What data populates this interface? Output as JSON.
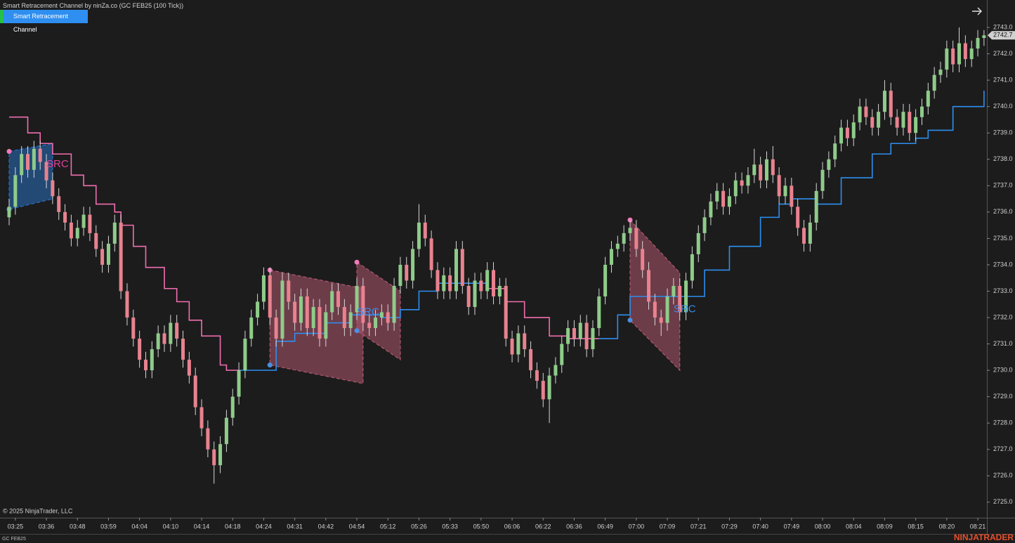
{
  "header": {
    "title": "Smart Retracement Channel by ninZa.co (GC FEB25 (100 Tick))",
    "button": "Smart Retracement Channel"
  },
  "footer": {
    "copyright": "© 2025 NinjaTrader, LLC",
    "instrument": "GC FEB25",
    "brand": "NINJATRADER"
  },
  "chart_data": {
    "type": "candlestick",
    "up_color": "#8fcb8a",
    "down_color": "#e8828f",
    "wick_color": "#d8d8d8",
    "ylim": [
      2724.41,
      2744.04
    ],
    "yticks": [
      {
        "value": 2725,
        "label": "2725.0"
      },
      {
        "value": 2726,
        "label": "2726.0"
      },
      {
        "value": 2727,
        "label": "2727.0"
      },
      {
        "value": 2728,
        "label": "2728.0"
      },
      {
        "value": 2729,
        "label": "2729.0"
      },
      {
        "value": 2730,
        "label": "2730.0"
      },
      {
        "value": 2731,
        "label": "2731.0"
      },
      {
        "value": 2732,
        "label": "2732.0"
      },
      {
        "value": 2733,
        "label": "2733.0"
      },
      {
        "value": 2734,
        "label": "2734.0"
      },
      {
        "value": 2735,
        "label": "2735.0"
      },
      {
        "value": 2736,
        "label": "2736.0"
      },
      {
        "value": 2737,
        "label": "2737.0"
      },
      {
        "value": 2738,
        "label": "2738.0"
      },
      {
        "value": 2739,
        "label": "2739.0"
      },
      {
        "value": 2740,
        "label": "2740.0"
      },
      {
        "value": 2741,
        "label": "2741.0"
      },
      {
        "value": 2742,
        "label": "2742.0"
      },
      {
        "value": 2743,
        "label": "2743.0"
      }
    ],
    "xticks": [
      {
        "value": 1,
        "label": "03:25"
      },
      {
        "value": 6,
        "label": "03:36"
      },
      {
        "value": 11,
        "label": "03:48"
      },
      {
        "value": 16,
        "label": "03:59"
      },
      {
        "value": 21,
        "label": "04:04"
      },
      {
        "value": 26,
        "label": "04:10"
      },
      {
        "value": 31,
        "label": "04:14"
      },
      {
        "value": 36,
        "label": "04:18"
      },
      {
        "value": 41,
        "label": "04:24"
      },
      {
        "value": 46,
        "label": "04:31"
      },
      {
        "value": 51,
        "label": "04:42"
      },
      {
        "value": 56,
        "label": "04:54"
      },
      {
        "value": 61,
        "label": "05:12"
      },
      {
        "value": 66,
        "label": "05:26"
      },
      {
        "value": 71,
        "label": "05:33"
      },
      {
        "value": 76,
        "label": "05:50"
      },
      {
        "value": 81,
        "label": "06:06"
      },
      {
        "value": 86,
        "label": "06:22"
      },
      {
        "value": 91,
        "label": "06:36"
      },
      {
        "value": 96,
        "label": "06:49"
      },
      {
        "value": 101,
        "label": "07:00"
      },
      {
        "value": 106,
        "label": "07:09"
      },
      {
        "value": 111,
        "label": "07:21"
      },
      {
        "value": 116,
        "label": "07:29"
      },
      {
        "value": 121,
        "label": "07:40"
      },
      {
        "value": 126,
        "label": "07:49"
      },
      {
        "value": 131,
        "label": "08:00"
      },
      {
        "value": 136,
        "label": "08:04"
      },
      {
        "value": 141,
        "label": "08:09"
      },
      {
        "value": 146,
        "label": "08:15"
      },
      {
        "value": 151,
        "label": "08:20"
      },
      {
        "value": 156,
        "label": "08:21"
      }
    ],
    "last_price": 2742.7,
    "candles": [
      [
        2735.8,
        2736.5,
        2735.5,
        2736.2
      ],
      [
        2736.2,
        2737.7,
        2735.9,
        2737.4
      ],
      [
        2737.4,
        2738.5,
        2737.1,
        2738.2
      ],
      [
        2738.2,
        2738.5,
        2737.3,
        2737.6
      ],
      [
        2737.6,
        2738.7,
        2737.3,
        2738.4
      ],
      [
        2738.4,
        2738.7,
        2737.6,
        2737.9
      ],
      [
        2737.9,
        2738.2,
        2736.9,
        2737.2
      ],
      [
        2737.2,
        2737.5,
        2736.3,
        2736.6
      ],
      [
        2736.6,
        2736.9,
        2735.7,
        2736.0
      ],
      [
        2736.0,
        2736.3,
        2735.3,
        2735.6
      ],
      [
        2735.6,
        2735.9,
        2734.7,
        2735.0
      ],
      [
        2735.0,
        2735.7,
        2734.7,
        2735.4
      ],
      [
        2735.4,
        2736.2,
        2735.1,
        2735.9
      ],
      [
        2735.9,
        2736.2,
        2734.9,
        2735.2
      ],
      [
        2735.2,
        2735.5,
        2734.3,
        2734.6
      ],
      [
        2734.6,
        2734.9,
        2733.7,
        2734.0
      ],
      [
        2734.0,
        2735.1,
        2733.7,
        2734.8
      ],
      [
        2734.8,
        2735.9,
        2734.5,
        2735.6
      ],
      [
        2735.6,
        2735.9,
        2732.7,
        2733.0
      ],
      [
        2733.0,
        2733.3,
        2731.7,
        2732.0
      ],
      [
        2732.0,
        2732.3,
        2730.9,
        2731.2
      ],
      [
        2731.2,
        2731.5,
        2730.1,
        2730.4
      ],
      [
        2730.4,
        2730.7,
        2729.7,
        2730.0
      ],
      [
        2730.0,
        2731.1,
        2729.7,
        2730.8
      ],
      [
        2730.8,
        2731.7,
        2730.5,
        2731.4
      ],
      [
        2731.4,
        2731.7,
        2730.7,
        2731.0
      ],
      [
        2731.0,
        2732.1,
        2730.7,
        2731.8
      ],
      [
        2731.8,
        2732.1,
        2730.9,
        2731.2
      ],
      [
        2731.2,
        2731.5,
        2730.1,
        2730.4
      ],
      [
        2730.4,
        2730.7,
        2729.5,
        2729.8
      ],
      [
        2729.8,
        2730.1,
        2728.3,
        2728.6
      ],
      [
        2728.6,
        2728.9,
        2727.5,
        2727.8
      ],
      [
        2727.8,
        2728.1,
        2726.7,
        2727.0
      ],
      [
        2727.0,
        2727.3,
        2725.7,
        2726.4
      ],
      [
        2726.4,
        2727.5,
        2726.1,
        2727.2
      ],
      [
        2727.2,
        2728.5,
        2726.9,
        2728.2
      ],
      [
        2728.2,
        2729.3,
        2727.9,
        2729.0
      ],
      [
        2729.0,
        2730.3,
        2728.7,
        2730.0
      ],
      [
        2730.0,
        2731.5,
        2729.7,
        2731.2
      ],
      [
        2731.2,
        2732.3,
        2730.9,
        2732.0
      ],
      [
        2732.0,
        2732.9,
        2731.7,
        2732.6
      ],
      [
        2732.6,
        2733.9,
        2732.3,
        2733.6
      ],
      [
        2733.6,
        2733.9,
        2731.7,
        2732.0
      ],
      [
        2732.0,
        2732.3,
        2730.9,
        2731.2
      ],
      [
        2731.2,
        2733.7,
        2730.9,
        2733.4
      ],
      [
        2733.4,
        2733.7,
        2732.3,
        2732.6
      ],
      [
        2732.6,
        2732.9,
        2731.5,
        2731.8
      ],
      [
        2731.8,
        2733.1,
        2731.5,
        2732.8
      ],
      [
        2732.8,
        2733.1,
        2731.3,
        2731.6
      ],
      [
        2731.6,
        2732.7,
        2731.3,
        2732.4
      ],
      [
        2732.4,
        2732.7,
        2730.9,
        2731.2
      ],
      [
        2731.2,
        2732.5,
        2730.9,
        2732.2
      ],
      [
        2732.2,
        2733.3,
        2731.9,
        2733.0
      ],
      [
        2733.0,
        2733.3,
        2732.1,
        2732.4
      ],
      [
        2732.4,
        2732.7,
        2731.3,
        2731.6
      ],
      [
        2731.6,
        2732.5,
        2731.3,
        2732.2
      ],
      [
        2732.2,
        2733.5,
        2731.9,
        2733.2
      ],
      [
        2733.2,
        2733.5,
        2731.5,
        2731.8
      ],
      [
        2731.8,
        2732.1,
        2731.3,
        2731.6
      ],
      [
        2731.6,
        2732.3,
        2731.3,
        2732.0
      ],
      [
        2732.0,
        2732.5,
        2731.7,
        2732.2
      ],
      [
        2732.2,
        2732.5,
        2731.5,
        2731.8
      ],
      [
        2731.8,
        2733.5,
        2731.5,
        2733.2
      ],
      [
        2733.2,
        2734.3,
        2732.9,
        2734.0
      ],
      [
        2734.0,
        2734.3,
        2733.1,
        2733.4
      ],
      [
        2733.4,
        2734.9,
        2733.1,
        2734.6
      ],
      [
        2734.6,
        2736.3,
        2734.3,
        2735.6
      ],
      [
        2735.6,
        2735.9,
        2734.7,
        2735.0
      ],
      [
        2735.0,
        2735.3,
        2733.5,
        2733.8
      ],
      [
        2733.8,
        2734.1,
        2732.7,
        2733.0
      ],
      [
        2733.0,
        2733.9,
        2732.7,
        2733.6
      ],
      [
        2733.6,
        2733.9,
        2732.7,
        2733.0
      ],
      [
        2733.0,
        2734.9,
        2732.7,
        2734.6
      ],
      [
        2734.6,
        2734.9,
        2732.9,
        2733.2
      ],
      [
        2733.2,
        2733.5,
        2732.1,
        2732.4
      ],
      [
        2732.4,
        2733.7,
        2732.1,
        2733.4
      ],
      [
        2733.4,
        2733.7,
        2732.7,
        2733.0
      ],
      [
        2733.0,
        2734.1,
        2732.7,
        2733.8
      ],
      [
        2733.8,
        2734.1,
        2732.5,
        2732.8
      ],
      [
        2732.8,
        2733.5,
        2732.5,
        2733.2
      ],
      [
        2733.2,
        2733.5,
        2730.9,
        2731.2
      ],
      [
        2731.2,
        2731.5,
        2730.3,
        2730.6
      ],
      [
        2730.6,
        2731.7,
        2730.3,
        2731.4
      ],
      [
        2731.4,
        2731.7,
        2730.5,
        2730.8
      ],
      [
        2730.8,
        2731.1,
        2729.7,
        2730.0
      ],
      [
        2730.0,
        2730.3,
        2729.3,
        2729.6
      ],
      [
        2729.6,
        2729.9,
        2728.6,
        2728.9
      ],
      [
        2728.9,
        2730.1,
        2728.0,
        2729.8
      ],
      [
        2729.8,
        2730.5,
        2729.5,
        2730.2
      ],
      [
        2730.2,
        2731.3,
        2729.9,
        2731.0
      ],
      [
        2731.0,
        2731.9,
        2730.7,
        2731.6
      ],
      [
        2731.6,
        2731.9,
        2730.9,
        2731.2
      ],
      [
        2731.2,
        2732.1,
        2730.9,
        2731.8
      ],
      [
        2731.8,
        2732.1,
        2730.5,
        2730.8
      ],
      [
        2730.8,
        2731.9,
        2730.5,
        2731.6
      ],
      [
        2731.6,
        2733.1,
        2731.3,
        2732.8
      ],
      [
        2732.8,
        2734.3,
        2732.5,
        2734.0
      ],
      [
        2734.0,
        2734.9,
        2733.7,
        2734.6
      ],
      [
        2734.6,
        2735.1,
        2734.3,
        2734.8
      ],
      [
        2734.8,
        2735.5,
        2734.5,
        2735.2
      ],
      [
        2735.2,
        2735.7,
        2734.9,
        2735.4
      ],
      [
        2735.4,
        2735.7,
        2734.3,
        2734.6
      ],
      [
        2734.6,
        2734.9,
        2733.5,
        2733.8
      ],
      [
        2733.8,
        2734.1,
        2732.3,
        2732.6
      ],
      [
        2732.6,
        2732.9,
        2731.7,
        2732.0
      ],
      [
        2732.0,
        2732.3,
        2731.3,
        2731.8
      ],
      [
        2731.8,
        2733.1,
        2731.5,
        2732.8
      ],
      [
        2732.8,
        2733.5,
        2732.5,
        2733.2
      ],
      [
        2733.2,
        2733.5,
        2731.9,
        2732.2
      ],
      [
        2732.2,
        2733.7,
        2731.9,
        2733.4
      ],
      [
        2733.4,
        2734.7,
        2733.1,
        2734.4
      ],
      [
        2734.4,
        2735.5,
        2734.1,
        2735.2
      ],
      [
        2735.2,
        2736.1,
        2734.9,
        2735.8
      ],
      [
        2735.8,
        2736.7,
        2735.5,
        2736.4
      ],
      [
        2736.4,
        2737.1,
        2736.1,
        2736.8
      ],
      [
        2736.8,
        2737.1,
        2735.9,
        2736.2
      ],
      [
        2736.2,
        2736.9,
        2735.9,
        2736.6
      ],
      [
        2736.6,
        2737.5,
        2736.3,
        2737.2
      ],
      [
        2737.2,
        2737.5,
        2736.7,
        2737.0
      ],
      [
        2737.0,
        2737.7,
        2736.7,
        2737.4
      ],
      [
        2737.4,
        2738.4,
        2737.1,
        2737.8
      ],
      [
        2737.8,
        2738.1,
        2736.9,
        2737.2
      ],
      [
        2737.2,
        2738.3,
        2736.9,
        2738.0
      ],
      [
        2738.0,
        2738.5,
        2737.1,
        2737.4
      ],
      [
        2737.4,
        2737.7,
        2736.3,
        2736.6
      ],
      [
        2736.6,
        2737.3,
        2736.3,
        2737.0
      ],
      [
        2737.0,
        2737.3,
        2735.9,
        2736.2
      ],
      [
        2736.2,
        2736.5,
        2735.1,
        2735.4
      ],
      [
        2735.4,
        2735.7,
        2734.5,
        2734.8
      ],
      [
        2734.8,
        2735.9,
        2734.5,
        2735.6
      ],
      [
        2735.6,
        2737.1,
        2735.3,
        2736.8
      ],
      [
        2736.8,
        2737.9,
        2736.5,
        2737.6
      ],
      [
        2737.6,
        2738.3,
        2737.3,
        2738.0
      ],
      [
        2738.0,
        2738.9,
        2737.7,
        2738.6
      ],
      [
        2738.6,
        2739.5,
        2738.3,
        2739.2
      ],
      [
        2739.2,
        2739.5,
        2738.5,
        2738.8
      ],
      [
        2738.8,
        2739.7,
        2738.5,
        2739.4
      ],
      [
        2739.4,
        2740.3,
        2739.1,
        2740.0
      ],
      [
        2740.0,
        2740.3,
        2739.3,
        2739.6
      ],
      [
        2739.6,
        2739.9,
        2738.9,
        2739.2
      ],
      [
        2739.2,
        2740.1,
        2738.9,
        2739.8
      ],
      [
        2739.8,
        2741.0,
        2739.5,
        2740.6
      ],
      [
        2740.6,
        2740.9,
        2739.3,
        2739.6
      ],
      [
        2739.6,
        2739.9,
        2738.9,
        2739.2
      ],
      [
        2739.2,
        2740.1,
        2738.9,
        2739.8
      ],
      [
        2739.8,
        2740.1,
        2738.7,
        2739.0
      ],
      [
        2739.0,
        2739.9,
        2738.7,
        2739.6
      ],
      [
        2739.6,
        2740.3,
        2739.3,
        2740.0
      ],
      [
        2740.0,
        2740.9,
        2739.7,
        2740.6
      ],
      [
        2740.6,
        2741.5,
        2740.3,
        2741.2
      ],
      [
        2741.2,
        2741.7,
        2740.9,
        2741.4
      ],
      [
        2741.4,
        2742.5,
        2741.1,
        2742.2
      ],
      [
        2742.2,
        2742.5,
        2741.3,
        2741.6
      ],
      [
        2741.6,
        2743.0,
        2741.3,
        2742.4
      ],
      [
        2742.4,
        2742.7,
        2741.5,
        2741.8
      ],
      [
        2741.8,
        2742.5,
        2741.5,
        2742.2
      ],
      [
        2742.2,
        2742.9,
        2741.9,
        2742.6
      ],
      [
        2742.6,
        2742.9,
        2742.3,
        2742.7
      ]
    ],
    "series": [
      {
        "color": "#f06eb0",
        "x": [
          0,
          3,
          5,
          7,
          10,
          12,
          14,
          17,
          18,
          20,
          22,
          25,
          27,
          29,
          31,
          34,
          35,
          37,
          38,
          77,
          80,
          83,
          87,
          90,
          95
        ],
        "values": [
          2739.6,
          2739.0,
          2738.6,
          2738.2,
          2737.4,
          2737.0,
          2736.3,
          2736.0,
          2735.5,
          2734.7,
          2733.9,
          2733.1,
          2732.6,
          2731.9,
          2731.3,
          2730.2,
          2730.0,
          2730.0,
          null,
          2733.1,
          2732.6,
          2732.0,
          2731.3,
          2731.2,
          2731.2
        ]
      },
      {
        "color": "#2d8ff0",
        "x": [
          37,
          43,
          46,
          51,
          55,
          60,
          63,
          66,
          69,
          77,
          78,
          95,
          98,
          100,
          109,
          112,
          116,
          121,
          124,
          126,
          130,
          134,
          139,
          142,
          146,
          148,
          152,
          157
        ],
        "values": [
          2730.0,
          2731.1,
          2731.4,
          2731.8,
          2732.1,
          2732.0,
          2732.3,
          2733.0,
          2733.3,
          2733.3,
          null,
          2731.2,
          2732.1,
          2732.8,
          2732.8,
          2733.8,
          2734.7,
          2735.8,
          2736.3,
          2736.5,
          2736.3,
          2737.3,
          2738.2,
          2738.6,
          2738.8,
          2739.1,
          2740.0,
          2740.6
        ]
      }
    ],
    "zones": [
      {
        "color": "#2a6fc0",
        "x": [
          0,
          7
        ],
        "upper": [
          2738.3,
          2738.6
        ],
        "lower": [
          2736.1,
          2736.5
        ]
      },
      {
        "color": "#b0586f",
        "x": [
          42,
          57
        ],
        "upper": [
          2733.8,
          2733.1
        ],
        "lower": [
          2730.2,
          2729.5
        ]
      },
      {
        "color": "#b0586f",
        "x": [
          56,
          63
        ],
        "upper": [
          2734.1,
          2733.0
        ],
        "lower": [
          2731.5,
          2730.4
        ]
      },
      {
        "color": "#b0586f",
        "x": [
          100,
          108
        ],
        "upper": [
          2735.7,
          2733.7
        ],
        "lower": [
          2731.9,
          2730.0
        ]
      }
    ],
    "annotations": [
      {
        "text": "SRC",
        "x": 6,
        "y": 2737.8,
        "color": "#e0409a"
      },
      {
        "text": "SRC",
        "x": 56,
        "y": 2732.2,
        "color": "#3a8ee6"
      },
      {
        "text": "SRC",
        "x": 107,
        "y": 2732.3,
        "color": "#3a8ee6"
      }
    ]
  }
}
